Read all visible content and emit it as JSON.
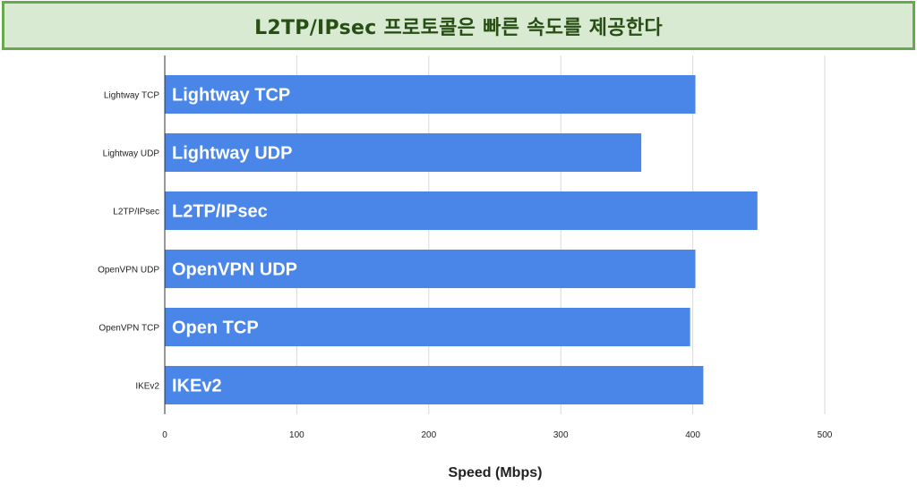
{
  "banner": {
    "title": "L2TP/IPsec 프로토콜은 빠른 속도를 제공한다",
    "background_color": "#d9ead3",
    "border_color": "#6aa84f",
    "text_color": "#274e13"
  },
  "chart_data": {
    "type": "bar",
    "orientation": "horizontal",
    "categories": [
      "Lightway TCP",
      "Lightway UDP",
      "L2TP/IPsec",
      "OpenVPN UDP",
      "OpenVPN TCP",
      "IKEv2"
    ],
    "bar_labels": [
      "Lightway TCP",
      "Lightway UDP",
      "L2TP/IPsec",
      "OpenVPN UDP",
      "Open TCP",
      "IKEv2"
    ],
    "values": [
      402,
      361,
      449,
      402,
      398,
      408
    ],
    "xlabel": "Speed (Mbps)",
    "ylabel": "",
    "xlim": [
      0,
      500
    ],
    "xticks": [
      0,
      100,
      200,
      300,
      400,
      500
    ],
    "grid": true,
    "legend": "none",
    "bar_color": "#4a86e8",
    "grid_color": "#d9d9d9"
  }
}
